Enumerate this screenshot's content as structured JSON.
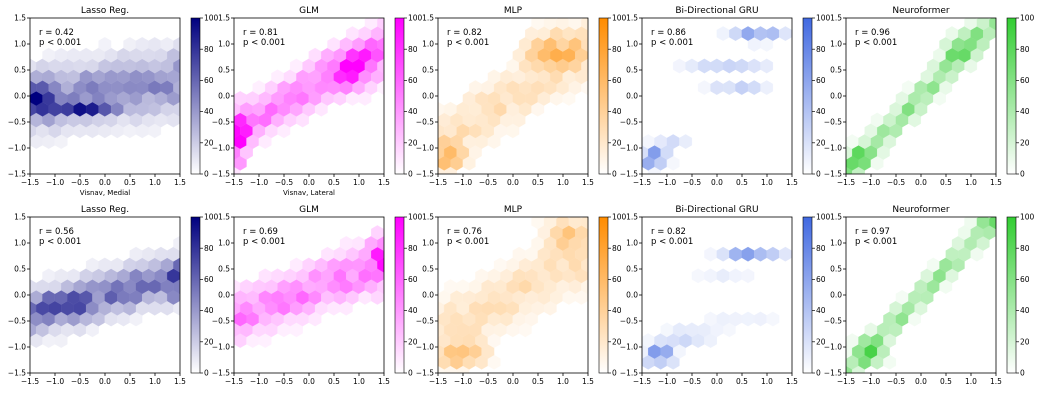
{
  "chart_data": [
    {
      "type": "heatmap",
      "title": "Lasso Reg.",
      "r_text": "r = 0.42",
      "p_text": "p < 0.001",
      "xlabel": "Visnav, Medial",
      "ylabel": "",
      "color": "#00007f",
      "xlim": [
        -1.5,
        1.5
      ],
      "ylim": [
        -1.5,
        1.5
      ],
      "colorbar_range": [
        0,
        100
      ],
      "colorbar_ticks": [
        "0",
        "20",
        "40",
        "60",
        "80",
        "100"
      ],
      "x_tick_labels": [
        "−1.5",
        "−1.0",
        "−0.5",
        "0.0",
        "0.5",
        "1.0",
        "1.5"
      ],
      "y_tick_labels": [
        "−1.5",
        "−1.0",
        "−0.5",
        "0.0",
        "0.5",
        "1.0",
        "1.5"
      ]
    },
    {
      "type": "heatmap",
      "title": "GLM",
      "r_text": "r = 0.81",
      "p_text": "p < 0.001",
      "xlabel": "Visnav, Lateral",
      "ylabel": "",
      "color": "#ff00ff",
      "xlim": [
        -1.5,
        1.5
      ],
      "ylim": [
        -1.5,
        1.5
      ],
      "colorbar_range": [
        0,
        100
      ],
      "colorbar_ticks": [
        "0",
        "20",
        "40",
        "60",
        "80",
        "100"
      ],
      "x_tick_labels": [
        "−1.5",
        "−1.0",
        "−0.5",
        "0.0",
        "0.5",
        "1.0",
        "1.5"
      ],
      "y_tick_labels": [
        "−1.5",
        "−1.0",
        "−0.5",
        "0.0",
        "0.5",
        "1.0",
        "1.5"
      ]
    },
    {
      "type": "heatmap",
      "title": "MLP",
      "r_text": "r = 0.82",
      "p_text": "p < 0.001",
      "xlabel": "",
      "ylabel": "",
      "color": "#ff8c00",
      "xlim": [
        -1.5,
        1.5
      ],
      "ylim": [
        -1.5,
        1.5
      ],
      "colorbar_range": [
        0,
        100
      ],
      "colorbar_ticks": [
        "0",
        "20",
        "40",
        "60",
        "80",
        "100"
      ],
      "x_tick_labels": [
        "−1.5",
        "−1.0",
        "−0.5",
        "0.0",
        "0.5",
        "1.0",
        "1.5"
      ],
      "y_tick_labels": [
        "−1.5",
        "−1.0",
        "−0.5",
        "0.0",
        "0.5",
        "1.0",
        "1.5"
      ]
    },
    {
      "type": "heatmap",
      "title": "Bi-Directional GRU",
      "r_text": "r = 0.86",
      "p_text": "p < 0.001",
      "xlabel": "",
      "ylabel": "",
      "color": "#4169e1",
      "xlim": [
        -1.5,
        1.5
      ],
      "ylim": [
        -1.5,
        1.5
      ],
      "colorbar_range": [
        0,
        100
      ],
      "colorbar_ticks": [
        "0",
        "20",
        "40",
        "60",
        "80",
        "100"
      ],
      "x_tick_labels": [
        "−1.5",
        "−1.0",
        "−0.5",
        "0.0",
        "0.5",
        "1.0",
        "1.5"
      ],
      "y_tick_labels": [
        "−1.5",
        "−1.0",
        "−0.5",
        "0.0",
        "0.5",
        "1.0",
        "1.5"
      ]
    },
    {
      "type": "heatmap",
      "title": "Neuroformer",
      "r_text": "r = 0.96",
      "p_text": "p < 0.001",
      "xlabel": "",
      "ylabel": "",
      "color": "#32cd32",
      "xlim": [
        -1.5,
        1.5
      ],
      "ylim": [
        -1.5,
        1.5
      ],
      "colorbar_range": [
        0,
        100
      ],
      "colorbar_ticks": [
        "0",
        "20",
        "40",
        "60",
        "80",
        "100"
      ],
      "x_tick_labels": [
        "−1.5",
        "−1.0",
        "−0.5",
        "0.0",
        "0.5",
        "1.0",
        "1.5"
      ],
      "y_tick_labels": [
        "−1.5",
        "−1.0",
        "−0.5",
        "0.0",
        "0.5",
        "1.0",
        "1.5"
      ]
    },
    {
      "type": "heatmap",
      "title": "Lasso Reg.",
      "r_text": "r = 0.56",
      "p_text": "p < 0.001",
      "xlabel": "",
      "ylabel": "",
      "color": "#00007f",
      "xlim": [
        -1.5,
        1.5
      ],
      "ylim": [
        -1.5,
        1.5
      ],
      "colorbar_range": [
        0,
        100
      ],
      "colorbar_ticks": [
        "0",
        "20",
        "40",
        "60",
        "80",
        "100"
      ],
      "x_tick_labels": [
        "−1.5",
        "−1.0",
        "−0.5",
        "0.0",
        "0.5",
        "1.0",
        "1.5"
      ],
      "y_tick_labels": [
        "−1.5",
        "−1.0",
        "−0.5",
        "0.0",
        "0.5",
        "1.0",
        "1.5"
      ]
    },
    {
      "type": "heatmap",
      "title": "GLM",
      "r_text": "r = 0.69",
      "p_text": "p < 0.001",
      "xlabel": "",
      "ylabel": "",
      "color": "#ff00ff",
      "xlim": [
        -1.5,
        1.5
      ],
      "ylim": [
        -1.5,
        1.5
      ],
      "colorbar_range": [
        0,
        100
      ],
      "colorbar_ticks": [
        "0",
        "20",
        "40",
        "60",
        "80",
        "100"
      ],
      "x_tick_labels": [
        "−1.5",
        "−1.0",
        "−0.5",
        "0.0",
        "0.5",
        "1.0",
        "1.5"
      ],
      "y_tick_labels": [
        "−1.5",
        "−1.0",
        "−0.5",
        "0.0",
        "0.5",
        "1.0",
        "1.5"
      ]
    },
    {
      "type": "heatmap",
      "title": "MLP",
      "r_text": "r = 0.76",
      "p_text": "p < 0.001",
      "xlabel": "",
      "ylabel": "",
      "color": "#ff8c00",
      "xlim": [
        -1.5,
        1.5
      ],
      "ylim": [
        -1.5,
        1.5
      ],
      "colorbar_range": [
        0,
        100
      ],
      "colorbar_ticks": [
        "0",
        "20",
        "40",
        "60",
        "80",
        "100"
      ],
      "x_tick_labels": [
        "−1.5",
        "−1.0",
        "−0.5",
        "0.0",
        "0.5",
        "1.0",
        "1.5"
      ],
      "y_tick_labels": [
        "−1.5",
        "−1.0",
        "−0.5",
        "0.0",
        "0.5",
        "1.0",
        "1.5"
      ]
    },
    {
      "type": "heatmap",
      "title": "Bi-Directional GRU",
      "r_text": "r = 0.82",
      "p_text": "p < 0.001",
      "xlabel": "",
      "ylabel": "",
      "color": "#4169e1",
      "xlim": [
        -1.5,
        1.5
      ],
      "ylim": [
        -1.5,
        1.5
      ],
      "colorbar_range": [
        0,
        100
      ],
      "colorbar_ticks": [
        "0",
        "20",
        "40",
        "60",
        "80",
        "100"
      ],
      "x_tick_labels": [
        "−1.5",
        "−1.0",
        "−0.5",
        "0.0",
        "0.5",
        "1.0",
        "1.5"
      ],
      "y_tick_labels": [
        "−1.5",
        "−1.0",
        "−0.5",
        "0.0",
        "0.5",
        "1.0",
        "1.5"
      ]
    },
    {
      "type": "heatmap",
      "title": "Neuroformer",
      "r_text": "r = 0.97",
      "p_text": "p < 0.001",
      "xlabel": "",
      "ylabel": "",
      "color": "#32cd32",
      "xlim": [
        -1.5,
        1.5
      ],
      "ylim": [
        -1.5,
        1.5
      ],
      "colorbar_range": [
        0,
        100
      ],
      "colorbar_ticks": [
        "0",
        "20",
        "40",
        "60",
        "80",
        "100"
      ],
      "x_tick_labels": [
        "−1.5",
        "−1.0",
        "−0.5",
        "0.0",
        "0.5",
        "1.0",
        "1.5"
      ],
      "y_tick_labels": [
        "−1.5",
        "−1.0",
        "−0.5",
        "0.0",
        "0.5",
        "1.0",
        "1.5"
      ]
    }
  ]
}
